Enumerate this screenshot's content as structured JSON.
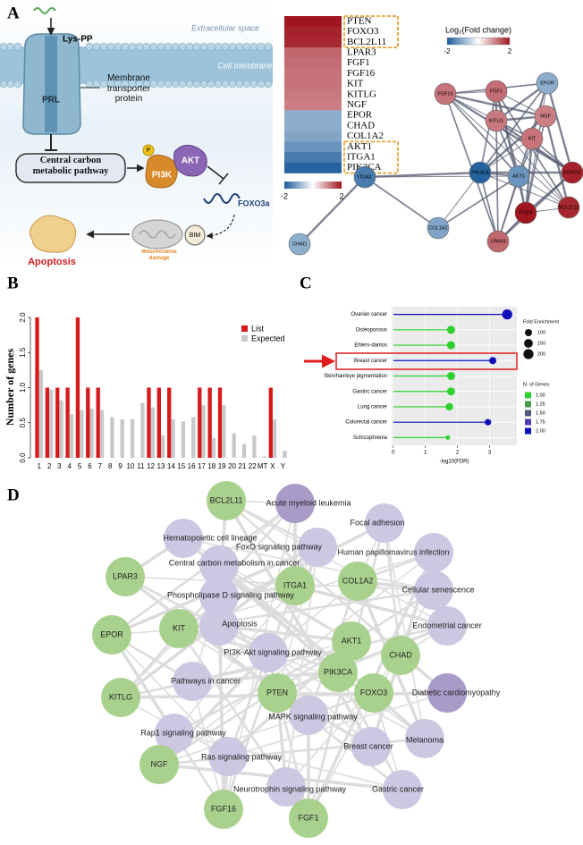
{
  "panel_labels": [
    "A",
    "B",
    "C",
    "D"
  ],
  "diagram": {
    "ligand": "Lys-PP",
    "extracellular": "Extracellular space",
    "membrane": "Cell membrane",
    "transporter": "Membrane transporter protein",
    "protein": "PRL",
    "pathway": "Central carbon metabolic pathway",
    "phospho": "P",
    "akt": "AKT",
    "pi3k": "PI3K",
    "foxo": "FOXO3a",
    "bim": "BIM",
    "mito": "Mitochondrial damage",
    "apoptosis": "Apoptosis"
  },
  "heatmap": {
    "genes": [
      "PTEN",
      "FOXO3",
      "BCL2L11",
      "LPAR3",
      "FGF1",
      "FGF16",
      "KIT",
      "KITLG",
      "NGF",
      "EPOR",
      "CHAD",
      "COL1A2",
      "AKT1",
      "ITGA1",
      "PIK3CA"
    ],
    "values": [
      2.0,
      1.9,
      1.85,
      1.3,
      1.25,
      1.2,
      1.2,
      1.15,
      1.1,
      -1.0,
      -1.0,
      -1.1,
      -1.3,
      -1.6,
      -1.9
    ],
    "range": [
      -2,
      2
    ],
    "colorbar_ticks": [
      -2,
      2
    ]
  },
  "network_a": {
    "legend_title": "Log₂(Fold change)",
    "legend_ticks": [
      -2,
      2
    ],
    "nodes": [
      "FGF16",
      "FGF1",
      "EPOR",
      "KITLG",
      "NGF",
      "KIT",
      "PIK3CA",
      "AKT1",
      "FOXO3",
      "PTEN",
      "BCL2L11",
      "LPAR3",
      "ITGA1",
      "COL1A2",
      "CHAD"
    ]
  },
  "chart_data": [
    {
      "type": "bar",
      "y_label": "Number of genes",
      "categories": [
        "1",
        "2",
        "3",
        "4",
        "5",
        "6",
        "7",
        "8",
        "9",
        "10",
        "11",
        "12",
        "13",
        "14",
        "15",
        "16",
        "17",
        "18",
        "19",
        "20",
        "21",
        "22",
        "MT",
        "X",
        "Y"
      ],
      "series": [
        {
          "name": "List",
          "color": "#d7191c",
          "values": [
            2,
            1,
            1,
            1,
            2,
            1,
            1,
            0,
            0,
            0,
            0,
            1,
            1,
            1,
            0,
            0,
            1,
            1,
            1,
            0,
            0,
            0,
            0,
            1,
            0
          ]
        },
        {
          "name": "Expected",
          "color": "#c8c8c8",
          "values": [
            1.25,
            0.97,
            0.82,
            0.62,
            0.68,
            0.7,
            0.68,
            0.58,
            0.55,
            0.55,
            0.78,
            0.72,
            0.32,
            0.55,
            0.52,
            0.58,
            0.75,
            0.28,
            0.75,
            0.35,
            0.2,
            0.32,
            0.02,
            0.55,
            0.1
          ]
        }
      ],
      "ylim": [
        0,
        2
      ],
      "yticks": [
        {
          "value": 0,
          "label": "0.0"
        },
        {
          "value": 0.5,
          "label": "0.5"
        },
        {
          "value": 1,
          "label": "1.0"
        },
        {
          "value": 1.5,
          "label": "1.5"
        },
        {
          "value": 2,
          "label": "2.0"
        }
      ],
      "legend": "top-right"
    },
    {
      "type": "lollipop",
      "x_label": "-log10(FDR)",
      "categories": [
        "Ovarian cancer",
        "Osteoporosis",
        "Ehlers-danlos",
        "Breast cancer",
        "Skin/hair/eye pigmentation",
        "Gastric cancer",
        "Lung cancer",
        "Colorectal cancer",
        "Schizophrenia"
      ],
      "values": [
        3.55,
        1.8,
        1.8,
        3.1,
        1.8,
        1.8,
        1.75,
        2.95,
        1.7
      ],
      "sizes": [
        200,
        130,
        130,
        100,
        125,
        125,
        110,
        80,
        40
      ],
      "n_genes": [
        2,
        1,
        1,
        2,
        1,
        1,
        1,
        2,
        1
      ],
      "xlim": [
        -0.05,
        3.85
      ],
      "xticks": [
        0,
        1,
        2,
        3
      ],
      "grid": true,
      "size_legend": {
        "title": "Fold Enrichment",
        "values": [
          100,
          150,
          200
        ]
      },
      "color_legend": {
        "title": "N. of Genes",
        "values": [
          {
            "value": 1,
            "label": "1.00"
          },
          {
            "value": 1.25,
            "label": "1.25"
          },
          {
            "value": 1.5,
            "label": "1.50"
          },
          {
            "value": 1.75,
            "label": "1.75"
          },
          {
            "value": 2,
            "label": "2.00"
          }
        ],
        "colors": [
          "#2fd12f",
          "#4a9a4a",
          "#505a80",
          "#4a3fb0",
          "#0f0fb8"
        ]
      }
    }
  ],
  "network_d": {
    "genes": [
      "BCL2L11",
      "LPAR3",
      "ITGA1",
      "COL1A2",
      "EPOR",
      "KIT",
      "AKT1",
      "CHAD",
      "PIK3CA",
      "PTEN",
      "FOXO3",
      "KITLG",
      "NGF",
      "FGF16",
      "FGF1"
    ],
    "gene_color": "#a9d18e",
    "pathways": [
      "Acute myeloid leukemia",
      "Focal adhesion",
      "Hematopoietic cell lineage",
      "FoxO signaling pathway",
      "Human papillomavirus infection",
      "Central carbon metabolism in cancer",
      "Phospholipase D signaling pathway",
      "Cellular senescence",
      "Apoptosis",
      "Endometrial cancer",
      "PI3K-Akt signaling pathway",
      "Pathways in cancer",
      "Diabetic cardiomyopathy",
      "MAPK signaling pathway",
      "Rap1 signaling pathway",
      "Breast cancer",
      "Melanoma",
      "Ras signaling pathway",
      "Neurotrophin signaling pathway",
      "Gastric cancer"
    ],
    "pathway_colors": [
      "#a99bc8",
      "#cdc7e2",
      "#cdc7e2",
      "#cdc7e2",
      "#cdc7e2",
      "#cdc7e2",
      "#cdc7e2",
      "#cdc7e2",
      "#cdc7e2",
      "#cdc7e2",
      "#cdc7e2",
      "#cdc7e2",
      "#a99bc8",
      "#cdc7e2",
      "#cdc7e2",
      "#cdc7e2",
      "#cdc7e2",
      "#cdc7e2",
      "#cdc7e2",
      "#cdc7e2"
    ]
  }
}
